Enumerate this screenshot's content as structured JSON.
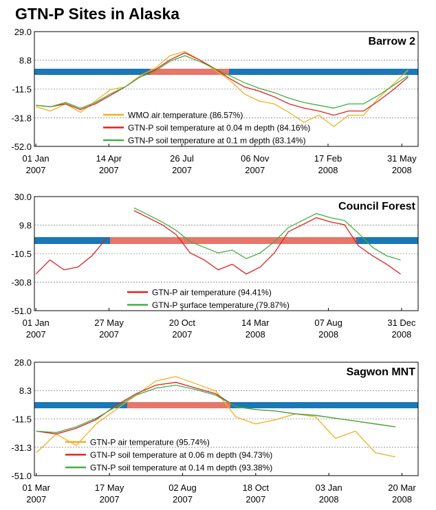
{
  "title": "GTN-P Sites in Alaska",
  "chart_data": [
    {
      "type": "line",
      "title": "Barrow 2",
      "x": [
        "2007-01-01",
        "2007-01-22",
        "2007-02-12",
        "2007-03-05",
        "2007-03-26",
        "2007-04-16",
        "2007-05-07",
        "2007-05-28",
        "2007-06-18",
        "2007-07-09",
        "2007-07-30",
        "2007-08-20",
        "2007-09-10",
        "2007-10-01",
        "2007-10-22",
        "2007-11-12",
        "2007-12-03",
        "2007-12-24",
        "2008-01-14",
        "2008-02-04",
        "2008-02-25",
        "2008-03-17",
        "2008-04-07",
        "2008-04-28",
        "2008-05-19",
        "2008-06-09"
      ],
      "series": [
        {
          "name": "WMO air temperature (86.57%)",
          "color": "#f0b020",
          "values": [
            -24,
            -27,
            -22,
            -28,
            -20,
            -12,
            -10,
            -2,
            3,
            12,
            15,
            9,
            2,
            -5,
            -15,
            -20,
            -22,
            -28,
            -35,
            -30,
            -38,
            -30,
            -30,
            -18,
            -8,
            2
          ]
        },
        {
          "name": "GTN-P soil temperature at 0.04 m depth  (84.16%)",
          "color": "#e02020",
          "values": [
            -23,
            -24,
            -22,
            -26,
            -22,
            -16,
            -10,
            -3,
            2,
            9,
            14,
            9,
            3,
            -4,
            -10,
            -13,
            -17,
            -22,
            -25,
            -27,
            -30,
            -27,
            -27,
            -20,
            -12,
            -3
          ]
        },
        {
          "name": "GTN-P soil temperature at 0.1 m depth (83.14%)",
          "color": "#40b040",
          "values": [
            -23,
            -24,
            -21,
            -25,
            -21,
            -15,
            -10,
            -3,
            1,
            8,
            12,
            8,
            3,
            -2,
            -7,
            -11,
            -14,
            -18,
            -21,
            -23,
            -25,
            -22,
            -22,
            -16,
            -9,
            -2
          ]
        }
      ],
      "xlim": [
        "2006-12-30",
        "2008-06-23"
      ],
      "xticks": [
        {
          "value": "2007-01-01",
          "label": "01 Jan 2007"
        },
        {
          "value": "2007-04-14",
          "label": "14 Apr 2007"
        },
        {
          "value": "2007-07-26",
          "label": "26 Jul 2007"
        },
        {
          "value": "2007-11-06",
          "label": "06 Nov 2007"
        },
        {
          "value": "2008-02-17",
          "label": "17 Feb 2008"
        },
        {
          "value": "2008-05-31",
          "label": "31 May 2008"
        }
      ],
      "ylim": [
        -52,
        29
      ],
      "yticks": [
        {
          "value": 29,
          "label": "29.0"
        },
        8.8,
        -11.5,
        -31.8,
        {
          "value": -52,
          "label": "-52.0"
        }
      ],
      "grid": true
    },
    {
      "type": "line",
      "title": "Council Forest",
      "x": [
        "2007-01-01",
        "2007-01-29",
        "2007-02-26",
        "2007-03-26",
        "2007-04-23",
        "2007-05-21",
        "2007-06-18",
        "2007-07-16",
        "2007-08-13",
        "2007-09-10",
        "2007-10-08",
        "2007-11-05",
        "2007-12-03",
        "2007-12-31",
        "2008-01-28",
        "2008-02-25",
        "2008-03-24",
        "2008-04-21",
        "2008-05-19",
        "2008-06-16",
        "2008-07-14",
        "2008-08-11",
        "2008-09-08",
        "2008-10-06",
        "2008-11-03",
        "2008-12-01",
        "2008-12-29"
      ],
      "series": [
        {
          "name": "GTN-P air temperature (94.41%)",
          "color": "#e02020",
          "values": [
            -25,
            -15,
            -22,
            -20,
            -12,
            0,
            null,
            20,
            15,
            10,
            3,
            -10,
            -15,
            -22,
            -18,
            -25,
            -20,
            -10,
            5,
            10,
            15,
            12,
            10,
            -5,
            -12,
            -18,
            -25
          ]
        },
        {
          "name": "GTN-P surface temperature (79.87%)",
          "color": "#40b040",
          "values": [
            null,
            null,
            null,
            null,
            null,
            null,
            null,
            22,
            17,
            12,
            6,
            -2,
            -6,
            -10,
            -8,
            -14,
            -10,
            -2,
            8,
            13,
            18,
            15,
            13,
            4,
            -6,
            -12,
            -15
          ]
        }
      ],
      "xlim": [
        "2006-12-29",
        "2009-02-02"
      ],
      "xticks": [
        {
          "value": "2007-01-01",
          "label": "01 Jan 2007"
        },
        {
          "value": "2007-05-27",
          "label": "27 May 2007"
        },
        {
          "value": "2007-10-20",
          "label": "20 Oct 2007"
        },
        {
          "value": "2008-03-14",
          "label": "14 Mar 2008"
        },
        {
          "value": "2008-08-07",
          "label": "07 Aug 2008"
        },
        {
          "value": "2008-12-31",
          "label": "31 Dec 2008"
        }
      ],
      "ylim": [
        -51,
        30
      ],
      "yticks": [
        {
          "value": 30,
          "label": "30.0"
        },
        9.8,
        -10.5,
        -30.8,
        {
          "value": -51,
          "label": "-51.0"
        }
      ],
      "grid": true
    },
    {
      "type": "line",
      "title": "Sagwon MNT",
      "x": [
        "2007-03-01",
        "2007-03-22",
        "2007-04-12",
        "2007-05-03",
        "2007-05-24",
        "2007-06-14",
        "2007-07-05",
        "2007-07-26",
        "2007-08-16",
        "2007-09-06",
        "2007-09-27",
        "2007-10-18",
        "2007-11-08",
        "2007-11-29",
        "2007-12-20",
        "2008-01-10",
        "2008-01-31",
        "2008-02-21",
        "2008-03-13"
      ],
      "series": [
        {
          "name": "GTN-P air temperature (95.74%)",
          "color": "#f0b020",
          "values": [
            -35,
            -22,
            -30,
            -15,
            -5,
            5,
            15,
            18,
            13,
            8,
            -10,
            -15,
            -12,
            -8,
            -10,
            -25,
            -20,
            -35,
            -38
          ]
        },
        {
          "name": "GTN-P soil temperature at 0.06 m depth  (94.73%)",
          "color": "#e02020",
          "values": [
            -20,
            -22,
            -18,
            -12,
            -2,
            6,
            12,
            14,
            10,
            6,
            -3,
            -5,
            -6,
            -8,
            -9,
            -11,
            -13,
            -15,
            -17
          ]
        },
        {
          "name": "GTN-P soil temperature at 0.14 m depth (93.38%)",
          "color": "#40b040",
          "values": [
            -20,
            -21,
            -17,
            -11,
            -3,
            5,
            10,
            12,
            9,
            5,
            -3,
            -5,
            -6,
            -8,
            -9,
            -11,
            -13,
            -15,
            -17
          ]
        }
      ],
      "xlim": [
        "2007-02-27",
        "2008-04-06"
      ],
      "xticks": [
        {
          "value": "2007-03-01",
          "label": "01 Mar 2007"
        },
        {
          "value": "2007-05-17",
          "label": "17 May 2007"
        },
        {
          "value": "2007-08-02",
          "label": "02 Aug 2007"
        },
        {
          "value": "2007-10-18",
          "label": "18 Oct 2007"
        },
        {
          "value": "2008-01-03",
          "label": "03 Jan 2008"
        },
        {
          "value": "2008-03-20",
          "label": "20 Mar 2008"
        }
      ],
      "ylim": [
        -51,
        28
      ],
      "yticks": [
        {
          "value": 28,
          "label": "28.0"
        },
        8.3,
        -11.5,
        -31.3,
        {
          "value": -51,
          "label": "-51.0"
        }
      ],
      "grid": true
    }
  ]
}
